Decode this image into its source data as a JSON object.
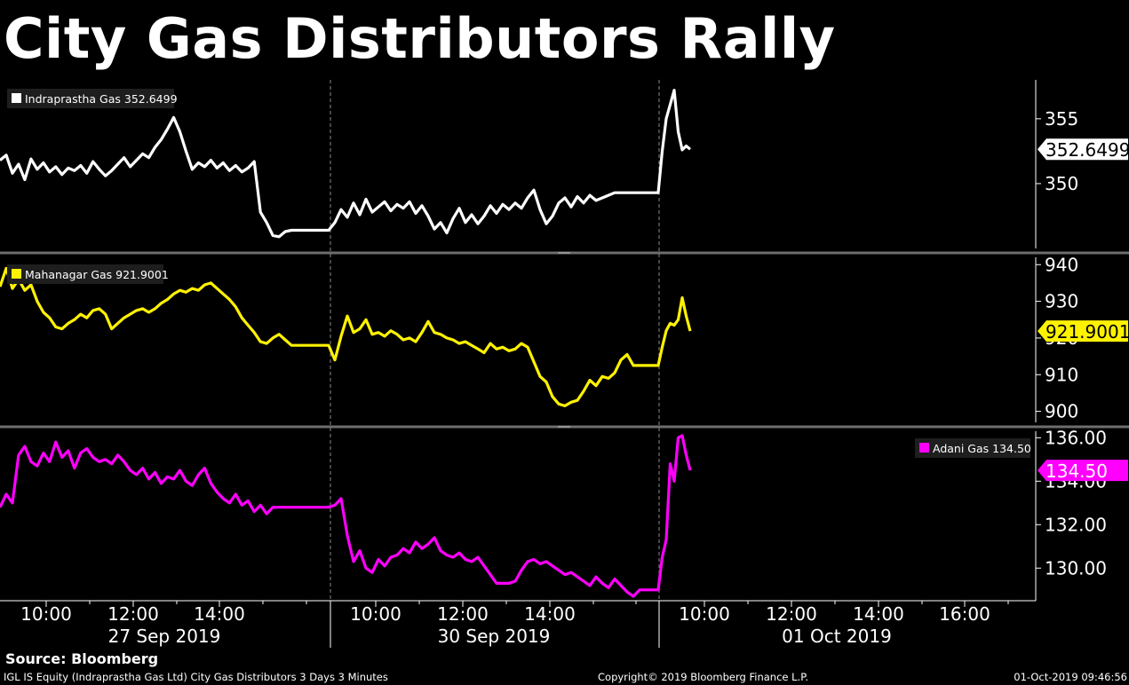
{
  "title": "City Gas Distributors Rally",
  "footer": {
    "source": "Source: Bloomberg",
    "description": "IGL IS Equity (Indraprastha Gas Ltd) City Gas Distributors 3 Days 3 Minutes",
    "copyright": "Copyright© 2019 Bloomberg Finance L.P.",
    "timestamp": "01-Oct-2019 09:46:56"
  },
  "chart_data": {
    "type": "line",
    "x_time_labels": [
      "10:00",
      "12:00",
      "14:00",
      "10:00",
      "12:00",
      "14:00",
      "10:00",
      "12:00",
      "14:00",
      "16:00"
    ],
    "x_date_labels": [
      "27 Sep 2019",
      "30 Sep 2019",
      "01 Oct 2019"
    ],
    "panels": [
      {
        "name": "Indraprastha Gas",
        "legend": "Indraprastha Gas 352.6499",
        "last_value": "352.6499",
        "color": "#ffffff",
        "yticks": [
          350,
          355
        ],
        "ytick_labels": [
          "350",
          "355"
        ],
        "ylim": [
          345.0,
          358.0
        ],
        "segments": [
          [
            351.8,
            352.2,
            350.8,
            351.5,
            350.3,
            351.9,
            351.1,
            351.6,
            350.9,
            351.3,
            350.7,
            351.2,
            351.0,
            351.4,
            350.8,
            351.7,
            351.1,
            350.6,
            351.0,
            351.5,
            352.0,
            351.3,
            351.8,
            352.3,
            352.0,
            352.8,
            353.4,
            354.2,
            355.1,
            354.0,
            352.5,
            351.1,
            351.6,
            351.3,
            351.8,
            351.2,
            351.6,
            351.0,
            351.4,
            350.9,
            351.2,
            351.7,
            347.8,
            347.0,
            346.0,
            345.9,
            346.3,
            346.4,
            346.4,
            346.4,
            346.4,
            346.4,
            346.4,
            346.4
          ],
          [
            346.4,
            347.0,
            348.0,
            347.4,
            348.5,
            347.6,
            348.8,
            347.8,
            348.2,
            348.6,
            347.9,
            348.4,
            348.1,
            348.6,
            347.7,
            348.3,
            347.5,
            346.5,
            347.0,
            346.2,
            347.3,
            348.1,
            347.0,
            347.6,
            346.9,
            347.5,
            348.3,
            347.7,
            348.4,
            348.0,
            348.5,
            348.1,
            348.9,
            349.5,
            348.0,
            346.9,
            347.5,
            348.5,
            348.9,
            348.2,
            349.0,
            348.5,
            349.1,
            348.7,
            348.9,
            349.1,
            349.3,
            349.3,
            349.3,
            349.3,
            349.3,
            349.3,
            349.3,
            349.3
          ],
          [
            349.3,
            352.5,
            355.0,
            356.1,
            357.2,
            354.0,
            352.6,
            352.9,
            352.6499
          ]
        ]
      },
      {
        "name": "Mahanagar Gas",
        "legend": "Mahanagar Gas 921.9001",
        "last_value": "921.9001",
        "color": "#fff200",
        "yticks": [
          900,
          910,
          920,
          930,
          940
        ],
        "ytick_labels": [
          "900",
          "910",
          "920",
          "930",
          "940"
        ],
        "ylim": [
          897.0,
          942.0
        ],
        "segments": [
          [
            934.0,
            939.0,
            933.5,
            936.0,
            933.0,
            934.5,
            930.0,
            927.0,
            925.5,
            923.0,
            922.5,
            924.0,
            925.0,
            926.5,
            925.5,
            927.5,
            928.0,
            926.5,
            922.5,
            924.0,
            925.5,
            926.5,
            927.5,
            928.0,
            927.0,
            928.0,
            929.5,
            930.5,
            932.0,
            933.0,
            932.5,
            933.5,
            933.0,
            934.5,
            935.0,
            933.5,
            932.0,
            930.5,
            928.5,
            925.5,
            923.5,
            921.5,
            919.0,
            918.5,
            920.0,
            921.0,
            919.5,
            918.0,
            918.0,
            918.0,
            918.0,
            918.0,
            918.0,
            918.0
          ],
          [
            918.0,
            914.0,
            920.5,
            926.0,
            921.5,
            922.5,
            925.0,
            921.0,
            921.5,
            920.5,
            922.0,
            921.0,
            919.5,
            920.0,
            919.0,
            921.5,
            924.5,
            921.5,
            921.0,
            920.0,
            919.5,
            918.5,
            919.0,
            918.0,
            917.0,
            916.0,
            918.5,
            917.0,
            917.5,
            916.5,
            917.0,
            918.5,
            917.5,
            913.5,
            909.5,
            908.0,
            904.0,
            902.0,
            901.5,
            902.5,
            903.0,
            905.5,
            908.5,
            907.0,
            909.5,
            909.0,
            910.5,
            914.0,
            915.5,
            912.5,
            912.5,
            912.5,
            912.5,
            912.5
          ],
          [
            912.5,
            917.5,
            922.0,
            924.0,
            923.5,
            925.0,
            931.0,
            926.0,
            921.9001
          ]
        ]
      },
      {
        "name": "Adani Gas",
        "legend": "Adani Gas 134.50",
        "last_value": "134.50",
        "color": "#ff00ff",
        "yticks": [
          130.0,
          132.0,
          134.0,
          136.0
        ],
        "ytick_labels": [
          "130.00",
          "132.00",
          "134.00",
          "136.00"
        ],
        "ylim": [
          128.5,
          136.3
        ],
        "segments": [
          [
            132.8,
            133.4,
            133.0,
            135.2,
            135.6,
            134.9,
            134.7,
            135.3,
            134.9,
            135.8,
            135.1,
            135.4,
            134.6,
            135.3,
            135.5,
            135.1,
            134.9,
            135.0,
            134.8,
            135.2,
            134.9,
            134.5,
            134.3,
            134.6,
            134.1,
            134.4,
            133.9,
            134.2,
            134.1,
            134.5,
            134.0,
            133.8,
            134.3,
            134.6,
            133.9,
            133.5,
            133.2,
            133.0,
            133.4,
            132.9,
            133.1,
            132.6,
            132.9,
            132.5,
            132.8,
            132.8,
            132.8,
            132.8,
            132.8,
            132.8,
            132.8,
            132.8,
            132.8,
            132.8
          ],
          [
            132.8,
            132.9,
            133.2,
            131.5,
            130.3,
            130.8,
            130.0,
            129.8,
            130.4,
            130.1,
            130.5,
            130.6,
            130.9,
            130.7,
            131.2,
            130.9,
            131.1,
            131.4,
            130.8,
            130.6,
            130.5,
            130.7,
            130.4,
            130.3,
            130.5,
            130.1,
            129.7,
            129.3,
            129.3,
            129.3,
            129.4,
            129.9,
            130.3,
            130.4,
            130.2,
            130.3,
            130.1,
            129.9,
            129.7,
            129.8,
            129.6,
            129.4,
            129.2,
            129.6,
            129.3,
            129.1,
            129.5,
            129.2,
            128.9,
            128.7,
            129.0,
            129.0,
            129.0,
            129.0
          ],
          [
            129.0,
            130.5,
            131.3,
            134.8,
            134.0,
            136.0,
            136.1,
            135.2,
            134.5
          ]
        ]
      }
    ]
  }
}
